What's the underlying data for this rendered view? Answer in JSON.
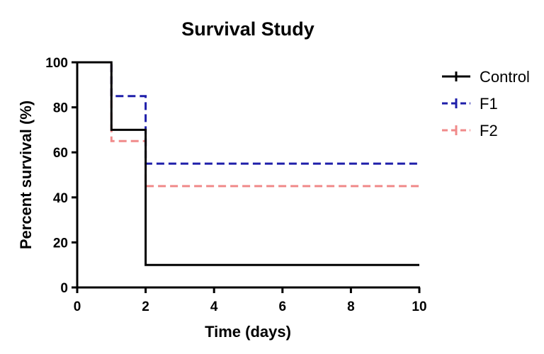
{
  "chart_data": {
    "type": "line",
    "subtype": "kaplan-meier-step",
    "title": "Survival Study",
    "xlabel": "Time (days)",
    "ylabel": "Percent survival (%)",
    "xlim": [
      0,
      10
    ],
    "ylim": [
      0,
      100
    ],
    "x_ticks": [
      0,
      2,
      4,
      6,
      8,
      10
    ],
    "y_ticks": [
      0,
      20,
      40,
      60,
      80,
      100
    ],
    "grid": false,
    "legend_position": "top-right",
    "series": [
      {
        "name": "Control",
        "color": "#000000",
        "line_style": "solid",
        "x": [
          0,
          1,
          2,
          10
        ],
        "y": [
          100,
          70,
          10,
          10
        ]
      },
      {
        "name": "F1",
        "color": "#1f1faa",
        "line_style": "dashed",
        "x": [
          0,
          1,
          2,
          10
        ],
        "y": [
          100,
          85,
          55,
          55
        ]
      },
      {
        "name": "F2",
        "color": "#f08a8a",
        "line_style": "dashed",
        "x": [
          0,
          1,
          2,
          10
        ],
        "y": [
          100,
          65,
          45,
          45
        ]
      }
    ]
  }
}
